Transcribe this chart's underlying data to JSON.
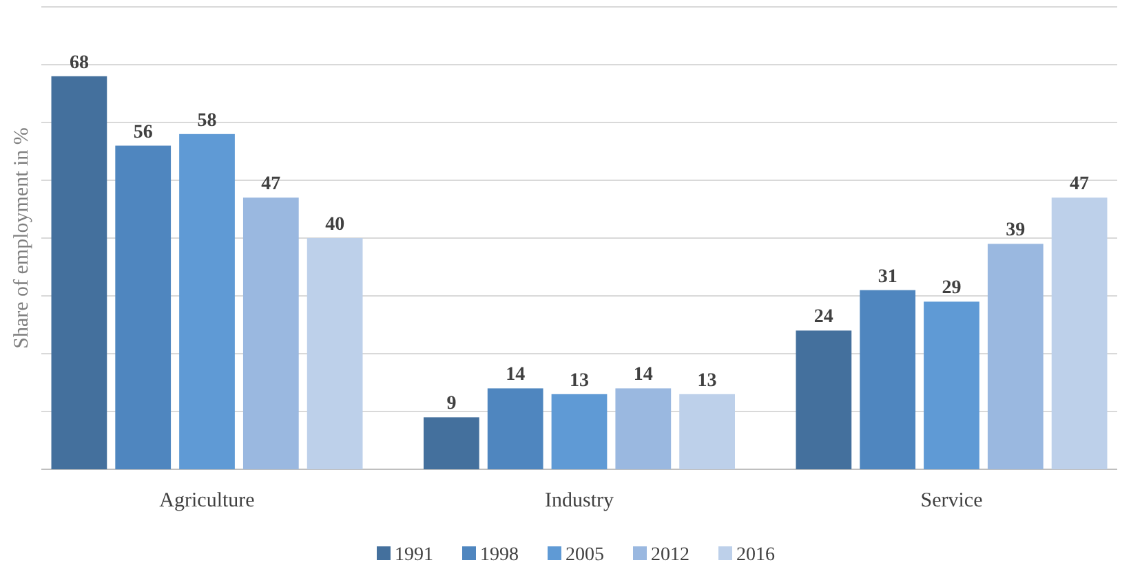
{
  "chart_data": {
    "type": "bar",
    "ylabel": "Share of employment in %",
    "categories": [
      "Agriculture",
      "Industry",
      "Service"
    ],
    "series": [
      {
        "name": "1991",
        "color": "#44709d",
        "values": [
          68,
          9,
          24
        ]
      },
      {
        "name": "1998",
        "color": "#4f86bf",
        "values": [
          56,
          14,
          31
        ]
      },
      {
        "name": "2005",
        "color": "#5f9ad5",
        "values": [
          58,
          13,
          29
        ]
      },
      {
        "name": "2012",
        "color": "#9ab8e0",
        "values": [
          47,
          14,
          39
        ]
      },
      {
        "name": "2016",
        "color": "#bdd0ea",
        "values": [
          40,
          13,
          47
        ]
      }
    ],
    "ylim": [
      0,
      80
    ],
    "yticks": [
      {
        "value": 0,
        "label": null
      },
      {
        "value": 10,
        "label": null
      },
      {
        "value": 20,
        "label": null
      },
      {
        "value": 30,
        "label": null
      },
      {
        "value": 40,
        "label": null
      },
      {
        "value": 50,
        "label": null
      },
      {
        "value": 60,
        "label": null
      },
      {
        "value": 70,
        "label": null
      },
      {
        "value": 80,
        "label": null
      }
    ],
    "tick_labels": "x",
    "grid": "y",
    "data_labels": true,
    "legend": "bottom"
  }
}
